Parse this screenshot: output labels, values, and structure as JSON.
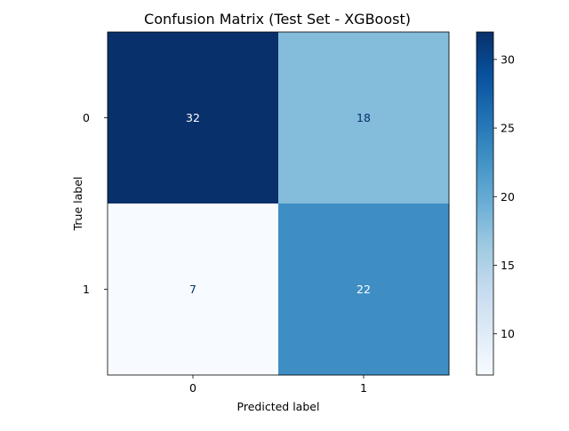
{
  "chart_data": {
    "type": "heatmap",
    "title": "Confusion Matrix (Test Set - XGBoost)",
    "xlabel": "Predicted label",
    "ylabel": "True label",
    "x_categories": [
      "0",
      "1"
    ],
    "y_categories": [
      "0",
      "1"
    ],
    "values": [
      [
        32,
        18
      ],
      [
        7,
        22
      ]
    ],
    "colormap": "Blues",
    "value_range": [
      7,
      32
    ],
    "colorbar_ticks": [
      "10",
      "15",
      "20",
      "25",
      "30"
    ],
    "colorbar_tick_values": [
      10,
      15,
      20,
      25,
      30
    ],
    "grid": false,
    "colors": {
      "cell_0_0": "#08306b",
      "cell_0_1": "#84bcdb",
      "cell_1_0": "#f7fbff",
      "cell_1_1": "#3e8ec4",
      "text_dark_bg": "#ffffff",
      "text_light_bg": "#08306b"
    }
  }
}
